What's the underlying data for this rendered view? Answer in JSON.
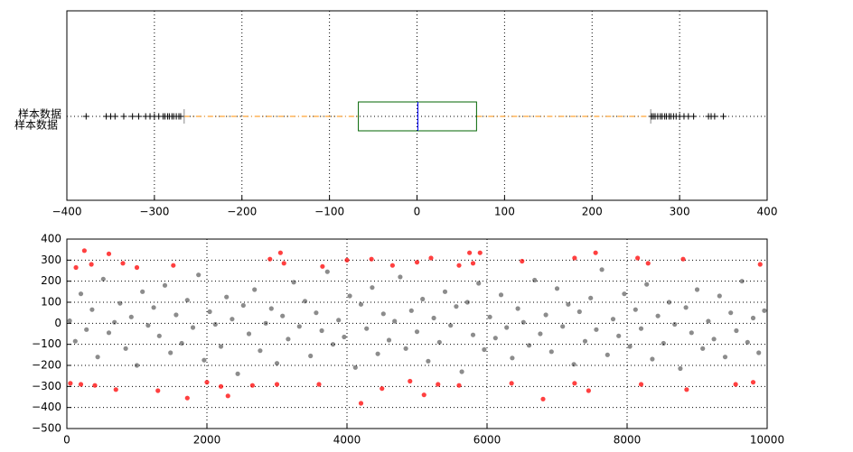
{
  "chart_data": [
    {
      "type": "boxplot",
      "categories": [
        "样本数据"
      ],
      "annotation": "样本数据",
      "annotation_color": "#d62728",
      "box": {
        "whislo": -266,
        "q1": -67,
        "med": 1,
        "q3": 68,
        "whishi": 267
      },
      "outliers": [
        -378,
        -355,
        -350,
        -345,
        -335,
        -325,
        -318,
        -310,
        -305,
        -300,
        -295,
        -290,
        -288,
        -285,
        -283,
        -280,
        -278,
        -275,
        -272,
        -270,
        268,
        270,
        272,
        275,
        278,
        280,
        283,
        285,
        288,
        290,
        293,
        296,
        300,
        305,
        310,
        316,
        333,
        336,
        340,
        350
      ],
      "box_color": "#006400",
      "median_color": "#0000ff",
      "whisker_color": "#ff8c00",
      "outlier_color": "#000000",
      "xlim": [
        -400,
        400
      ],
      "xticks": [
        {
          "value": -400,
          "label": "−400"
        },
        {
          "value": -300,
          "label": "−300"
        },
        {
          "value": -200,
          "label": "−200"
        },
        {
          "value": -100,
          "label": "−100"
        },
        0,
        100,
        200,
        300,
        400
      ],
      "grid": true
    },
    {
      "type": "scatter",
      "xlim": [
        0,
        10000
      ],
      "ylim": [
        -500,
        400
      ],
      "xticks": [
        0,
        2000,
        4000,
        6000,
        8000,
        10000
      ],
      "yticks": [
        {
          "value": -500,
          "label": "−500"
        },
        {
          "value": -400,
          "label": "−400"
        },
        {
          "value": -300,
          "label": "−300"
        },
        {
          "value": -200,
          "label": "−200"
        },
        {
          "value": -100,
          "label": "−100"
        },
        0,
        100,
        200,
        300,
        400
      ],
      "grid": true,
      "series": [
        {
          "color": "#000000",
          "x": [
            40,
            120,
            200,
            280,
            360,
            440,
            520,
            600,
            680,
            760,
            840,
            920,
            1000,
            1080,
            1160,
            1240,
            1320,
            1400,
            1480,
            1560,
            1640,
            1720,
            1800,
            1880,
            1960,
            2040,
            2120,
            2200,
            2280,
            2360,
            2440,
            2520,
            2600,
            2680,
            2760,
            2840,
            2920,
            3000,
            3080,
            3160,
            3240,
            3320,
            3400,
            3480,
            3560,
            3640,
            3720,
            3800,
            3880,
            3960,
            4040,
            4120,
            4200,
            4280,
            4360,
            4440,
            4520,
            4600,
            4680,
            4760,
            4840,
            4920,
            5000,
            5080,
            5160,
            5240,
            5320,
            5400,
            5480,
            5560,
            5640,
            5720,
            5800,
            5880,
            5960,
            6040,
            6120,
            6200,
            6280,
            6360,
            6440,
            6520,
            6600,
            6680,
            6760,
            6840,
            6920,
            7000,
            7080,
            7160,
            7240,
            7320,
            7400,
            7480,
            7560,
            7640,
            7720,
            7800,
            7880,
            7960,
            8040,
            8120,
            8200,
            8280,
            8360,
            8440,
            8520,
            8600,
            8680,
            8760,
            8840,
            8920,
            9000,
            9080,
            9160,
            9240,
            9320,
            9400,
            9480,
            9560,
            9640,
            9720,
            9800,
            9880,
            9960
          ],
          "values": [
            12,
            -85,
            140,
            -30,
            65,
            -160,
            210,
            -45,
            5,
            95,
            -120,
            30,
            -200,
            150,
            -10,
            75,
            -60,
            180,
            -140,
            40,
            -95,
            110,
            -20,
            230,
            -175,
            55,
            -5,
            -110,
            125,
            20,
            -240,
            85,
            -50,
            160,
            -130,
            0,
            70,
            -190,
            35,
            -75,
            195,
            -15,
            105,
            -155,
            50,
            -35,
            245,
            -100,
            15,
            -65,
            130,
            -210,
            90,
            -25,
            170,
            -145,
            45,
            -80,
            10,
            220,
            -120,
            60,
            -40,
            115,
            -180,
            25,
            -90,
            150,
            -10,
            80,
            -230,
            100,
            -55,
            190,
            -125,
            30,
            -70,
            135,
            -20,
            -165,
            70,
            5,
            -105,
            205,
            -50,
            40,
            -135,
            165,
            -15,
            90,
            -195,
            55,
            -85,
            120,
            -30,
            255,
            -150,
            20,
            -60,
            140,
            -110,
            65,
            -25,
            185,
            -170,
            35,
            -95,
            100,
            -5,
            -215,
            75,
            -45,
            160,
            -120,
            10,
            -75,
            130,
            -160,
            50,
            -35,
            200,
            -90,
            25,
            -140,
            60
          ]
        },
        {
          "color": "#ff0000",
          "x": [
            250,
            130,
            350,
            600,
            800,
            1000,
            1520,
            2900,
            3050,
            3100,
            3650,
            4000,
            4350,
            4650,
            5000,
            5200,
            5600,
            5750,
            5900,
            5800,
            6500,
            7250,
            7550,
            8150,
            8300,
            8800,
            9900,
            50,
            200,
            400,
            700,
            1300,
            1720,
            2000,
            2200,
            2300,
            2650,
            3000,
            3600,
            4200,
            4500,
            4900,
            5100,
            5300,
            5600,
            6350,
            6800,
            7250,
            7450,
            8200,
            8850,
            9550,
            9800
          ],
          "values": [
            345,
            265,
            280,
            330,
            285,
            265,
            275,
            305,
            335,
            285,
            270,
            300,
            305,
            275,
            290,
            310,
            275,
            335,
            335,
            285,
            295,
            310,
            335,
            310,
            285,
            305,
            280,
            -285,
            -290,
            -295,
            -315,
            -320,
            -355,
            -280,
            -300,
            -345,
            -295,
            -290,
            -290,
            -380,
            -310,
            -275,
            -340,
            -290,
            -295,
            -285,
            -360,
            -285,
            -320,
            -290,
            -315,
            -290,
            -280
          ]
        }
      ]
    }
  ]
}
